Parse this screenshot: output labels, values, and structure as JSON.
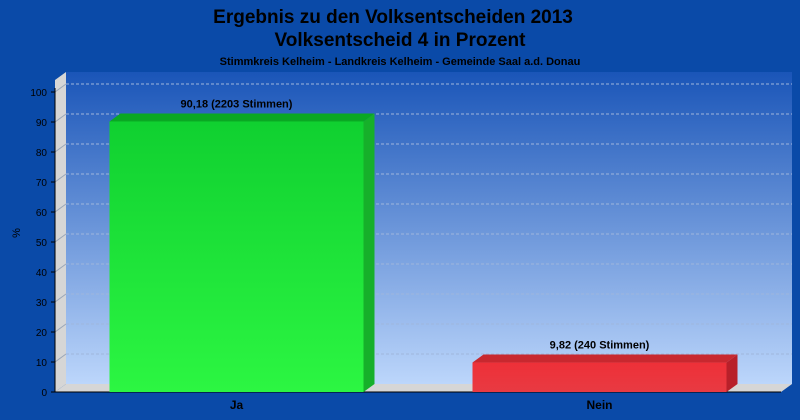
{
  "chart_data": {
    "type": "bar",
    "title": "Ergebnis zu den Volksentscheiden 2013",
    "title2": "Volksentscheid 4 in Prozent",
    "subtitle": "Stimmkreis Kelheim - Landkreis Kelheim - Gemeinde Saal a.d. Donau",
    "ylabel": "%",
    "ylim": [
      0,
      100
    ],
    "yticks": [
      "0",
      "10",
      "20",
      "30",
      "40",
      "50",
      "60",
      "70",
      "80",
      "90",
      "100"
    ],
    "categories": [
      "Ja",
      "Nein"
    ],
    "values": [
      90.18,
      9.82
    ],
    "data_labels": [
      "90,18 (2203 Stimmen)",
      "9,82 (240 Stimmen)"
    ],
    "colors": [
      "#1ee83a",
      "#e8323a"
    ],
    "grid": true
  }
}
